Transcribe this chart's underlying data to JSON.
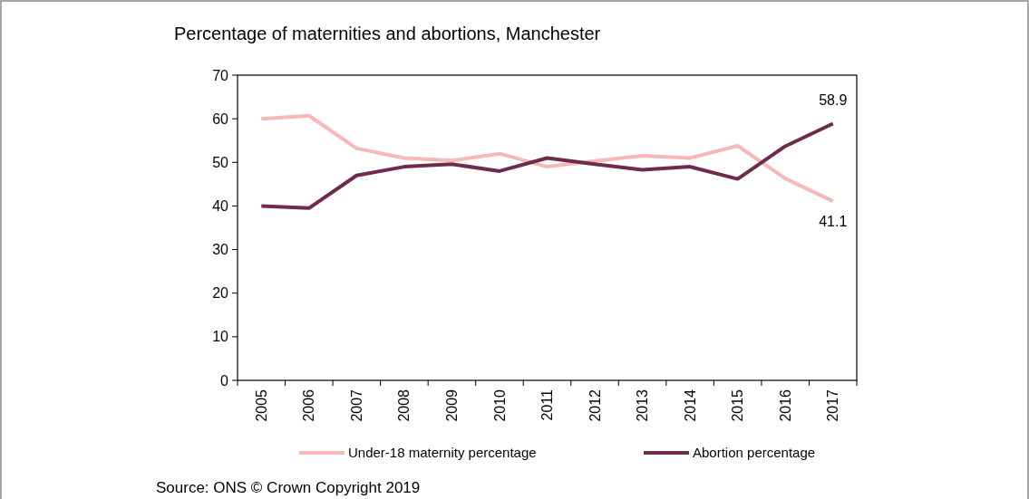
{
  "chart_data": {
    "type": "line",
    "title": "Percentage of maternities and abortions, Manchester",
    "categories": [
      "2005",
      "2006",
      "2007",
      "2008",
      "2009",
      "2010",
      "2011",
      "2012",
      "2013",
      "2014",
      "2015",
      "2016",
      "2017"
    ],
    "series": [
      {
        "name": "Under-18 maternity percentage",
        "color": "#f7b8b8",
        "values": [
          60.0,
          60.7,
          53.2,
          51.0,
          50.4,
          52.0,
          49.0,
          50.3,
          51.5,
          51.0,
          53.8,
          46.3,
          41.1
        ],
        "value_labels": [
          null,
          null,
          null,
          null,
          null,
          null,
          null,
          null,
          null,
          null,
          null,
          null,
          "41.1"
        ]
      },
      {
        "name": "Abortion percentage",
        "color": "#6e2b4d",
        "values": [
          40.0,
          39.5,
          47.0,
          49.0,
          49.6,
          48.0,
          51.0,
          49.6,
          48.3,
          49.0,
          46.2,
          53.7,
          58.9
        ],
        "value_labels": [
          null,
          null,
          null,
          null,
          null,
          null,
          null,
          null,
          null,
          null,
          null,
          null,
          "58.9"
        ]
      }
    ],
    "ylim": [
      0,
      70
    ],
    "yticks": [
      0,
      10,
      20,
      30,
      40,
      50,
      60,
      70
    ],
    "grid": false,
    "legend": "bottom",
    "marker": "none",
    "line_style": "solid",
    "annotations": [
      "Source: ONS © Crown Copyright 2019"
    ]
  }
}
